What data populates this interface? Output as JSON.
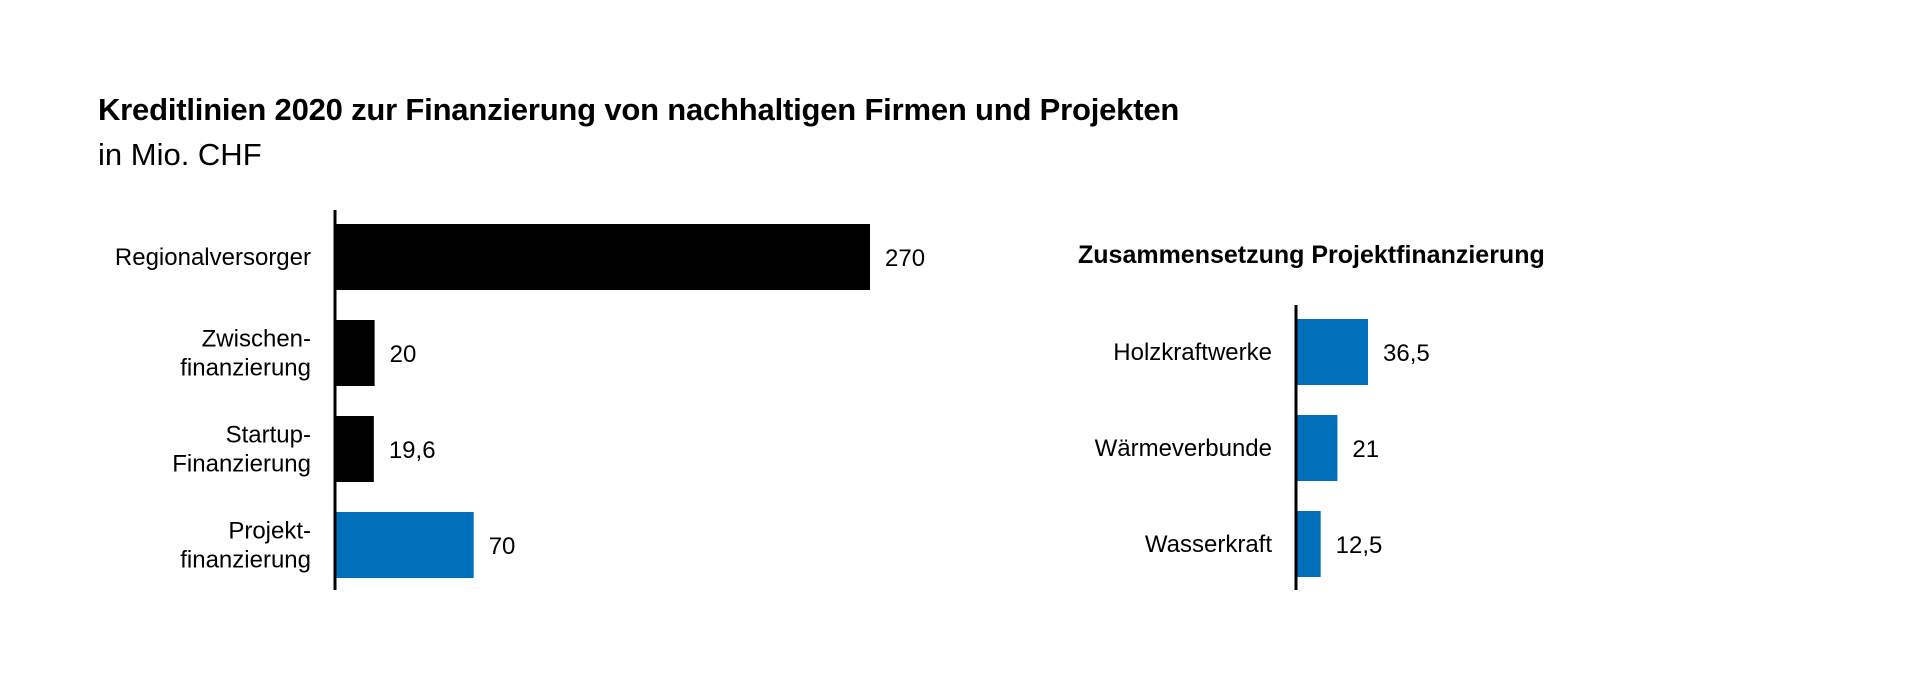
{
  "title": "Kreditlinien 2020 zur Finanzierung von nachhaltigen Firmen und Projekten",
  "subtitle": "in Mio. CHF",
  "colors": {
    "dark": "#000000",
    "accent": "#0070bb"
  },
  "chart_data": [
    {
      "type": "bar",
      "orientation": "horizontal",
      "title": "",
      "categories": [
        [
          "Regionalversorger"
        ],
        [
          "Zwischen-",
          "finanzierung"
        ],
        [
          "Startup-",
          "Finanzierung"
        ],
        [
          "Projekt-",
          "finanzierung"
        ]
      ],
      "values": [
        270,
        20,
        19.6,
        70
      ],
      "value_labels": [
        "270",
        "20",
        "19,6",
        "70"
      ],
      "highlight": [
        false,
        false,
        false,
        true
      ],
      "xlim": [
        0,
        270
      ]
    },
    {
      "type": "bar",
      "orientation": "horizontal",
      "title": "Zusammensetzung Projektfinanzierung",
      "categories": [
        [
          "Holzkraftwerke"
        ],
        [
          "Wärmeverbunde"
        ],
        [
          "Wasserkraft"
        ]
      ],
      "values": [
        36.5,
        21,
        12.5
      ],
      "value_labels": [
        "36,5",
        "21",
        "12,5"
      ],
      "highlight": [
        true,
        true,
        true
      ],
      "xlim": [
        0,
        36.5
      ]
    }
  ]
}
